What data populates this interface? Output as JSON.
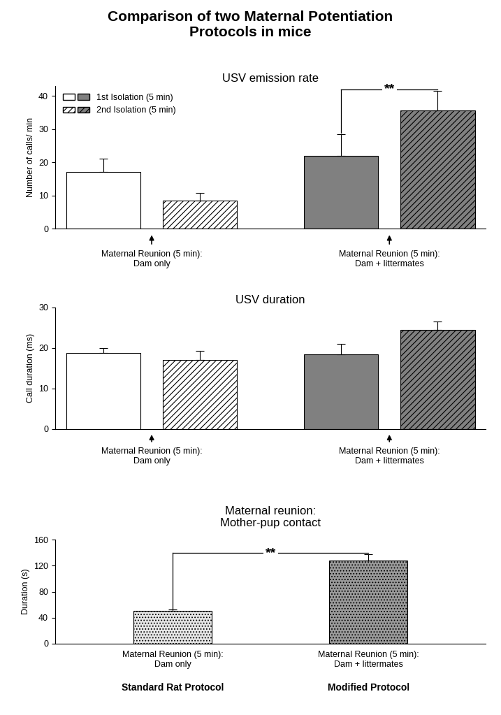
{
  "title": "Comparison of two Maternal Potentiation\nProtocols in mice",
  "chart_data": [
    {
      "type": "bar",
      "title": "USV emission rate",
      "y_label": "Number of calls/ min",
      "categories": [
        "Maternal Reunion (5 min):\nDam only",
        "Maternal Reunion (5 min):\nDam + littermates"
      ],
      "series": [
        {
          "name": "1st Isolation (5 min)",
          "colors": [
            "#ffffff",
            "#808080"
          ],
          "values": [
            17,
            22
          ],
          "errors": [
            4,
            6.5
          ]
        },
        {
          "name": "2nd Isolation (5 min)",
          "colors": [
            "#ffffff",
            "#808080"
          ],
          "values": [
            8.5,
            35.5
          ],
          "errors": [
            2.2,
            6
          ]
        }
      ],
      "ylim": [
        0,
        43
      ],
      "yticks": [
        0,
        10,
        20,
        30,
        40
      ],
      "legend": "upper left",
      "significance": [
        {
          "label": "**",
          "category": "Maternal Reunion (5 min):\nDam + littermates"
        }
      ]
    },
    {
      "type": "bar",
      "title": "USV duration",
      "y_label": "Call duration (ms)",
      "categories": [
        "Maternal Reunion (5 min):\nDam only",
        "Maternal Reunion (5 min):\nDam + littermates"
      ],
      "series": [
        {
          "name": "1st Isolation (5 min)",
          "colors": [
            "#ffffff",
            "#808080"
          ],
          "values": [
            18.8,
            18.4
          ],
          "errors": [
            1.2,
            2.6
          ]
        },
        {
          "name": "2nd Isolation (5 min)",
          "colors": [
            "#ffffff",
            "#808080"
          ],
          "values": [
            17,
            24.5
          ],
          "errors": [
            2.2,
            2
          ]
        }
      ],
      "ylim": [
        0,
        30
      ],
      "yticks": [
        0,
        10,
        20,
        30
      ]
    },
    {
      "type": "bar",
      "title": "Maternal reunion:\nMother-pup contact",
      "y_label": "Duration (s)",
      "categories": [
        "Maternal Reunion (5 min):\nDam only",
        "Maternal Reunion (5 min):\nDam + littermates"
      ],
      "group_labels": [
        "Standard Rat Protocol",
        "Modified Protocol"
      ],
      "values": [
        50,
        128
      ],
      "errors": [
        2,
        10
      ],
      "colors": [
        "#e6e6e6",
        "#9a9a9a"
      ],
      "ylim": [
        0,
        160
      ],
      "yticks": [
        0,
        40,
        80,
        120,
        160
      ],
      "significance": [
        {
          "label": "**",
          "categories": [
            "Maternal Reunion (5 min):\nDam only",
            "Maternal Reunion (5 min):\nDam + littermates"
          ]
        }
      ]
    }
  ]
}
